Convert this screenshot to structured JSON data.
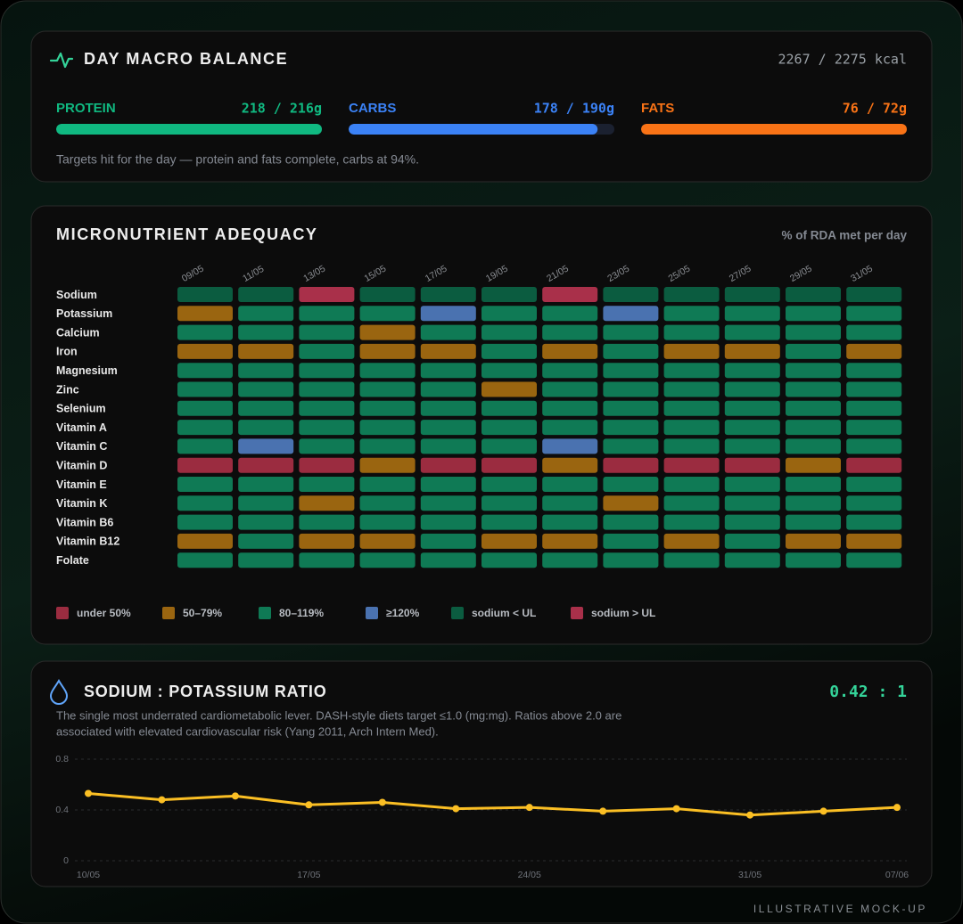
{
  "macros": {
    "title": "DAY MACRO BALANCE",
    "kcal": "2267 / 2275 kcal",
    "items": [
      {
        "name": "PROTEIN",
        "label": "218 / 216g",
        "value": 218,
        "target": 216,
        "color": "#10b981"
      },
      {
        "name": "CARBS",
        "label": "178 / 190g",
        "value": 178,
        "target": 190,
        "color": "#3b82f6"
      },
      {
        "name": "FATS",
        "label": "76 / 72g",
        "value": 76,
        "target": 72,
        "color": "#f97316"
      }
    ],
    "note": "Targets hit for the day — protein and fats complete, carbs at 94%."
  },
  "micronutrients": {
    "title": "MICRONUTRIENT ADEQUACY",
    "subtitle": "% of RDA met per day",
    "dates": [
      "09/05",
      "11/05",
      "13/05",
      "15/05",
      "17/05",
      "19/05",
      "21/05",
      "23/05",
      "25/05",
      "27/05",
      "29/05",
      "31/05"
    ],
    "legend": [
      {
        "label": "under 50%",
        "color": "#9b2c40"
      },
      {
        "label": "50–79%",
        "color": "#9a6510"
      },
      {
        "label": "80–119%",
        "color": "#0f7a55"
      },
      {
        "label": "≥120%",
        "color": "#4a72b0"
      },
      {
        "label": "sodium < UL",
        "color": "#0b5c40"
      },
      {
        "label": "sodium > UL",
        "color": "#a9304a"
      }
    ],
    "rows": [
      {
        "name": "Sodium",
        "cells": [
          4,
          4,
          5,
          4,
          4,
          4,
          5,
          4,
          4,
          4,
          4,
          4
        ]
      },
      {
        "name": "Potassium",
        "cells": [
          1,
          2,
          2,
          2,
          3,
          2,
          2,
          3,
          2,
          2,
          2,
          2
        ]
      },
      {
        "name": "Calcium",
        "cells": [
          2,
          2,
          2,
          1,
          2,
          2,
          2,
          2,
          2,
          2,
          2,
          2
        ]
      },
      {
        "name": "Iron",
        "cells": [
          1,
          1,
          2,
          1,
          1,
          2,
          1,
          2,
          1,
          1,
          2,
          1
        ]
      },
      {
        "name": "Magnesium",
        "cells": [
          2,
          2,
          2,
          2,
          2,
          2,
          2,
          2,
          2,
          2,
          2,
          2
        ]
      },
      {
        "name": "Zinc",
        "cells": [
          2,
          2,
          2,
          2,
          2,
          1,
          2,
          2,
          2,
          2,
          2,
          2
        ]
      },
      {
        "name": "Selenium",
        "cells": [
          2,
          2,
          2,
          2,
          2,
          2,
          2,
          2,
          2,
          2,
          2,
          2
        ]
      },
      {
        "name": "Vitamin A",
        "cells": [
          2,
          2,
          2,
          2,
          2,
          2,
          2,
          2,
          2,
          2,
          2,
          2
        ]
      },
      {
        "name": "Vitamin C",
        "cells": [
          2,
          3,
          2,
          2,
          2,
          2,
          3,
          2,
          2,
          2,
          2,
          2
        ]
      },
      {
        "name": "Vitamin D",
        "cells": [
          0,
          0,
          0,
          1,
          0,
          0,
          1,
          0,
          0,
          0,
          1,
          0
        ]
      },
      {
        "name": "Vitamin E",
        "cells": [
          2,
          2,
          2,
          2,
          2,
          2,
          2,
          2,
          2,
          2,
          2,
          2
        ]
      },
      {
        "name": "Vitamin K",
        "cells": [
          2,
          2,
          1,
          2,
          2,
          2,
          2,
          1,
          2,
          2,
          2,
          2
        ]
      },
      {
        "name": "Vitamin B6",
        "cells": [
          2,
          2,
          2,
          2,
          2,
          2,
          2,
          2,
          2,
          2,
          2,
          2
        ]
      },
      {
        "name": "Vitamin B12",
        "cells": [
          1,
          2,
          1,
          1,
          2,
          1,
          1,
          2,
          1,
          2,
          1,
          1
        ]
      },
      {
        "name": "Folate",
        "cells": [
          2,
          2,
          2,
          2,
          2,
          2,
          2,
          2,
          2,
          2,
          2,
          2
        ]
      }
    ]
  },
  "chart_data": {
    "type": "line",
    "title": "SODIUM : POTASSIUM RATIO",
    "annotation": "0.42 : 1",
    "description": [
      "The single most underrated cardiometabolic lever. DASH-style diets target ≤1.0 (mg:mg). Ratios above 2.0 are",
      "associated with elevated cardiovascular risk (Yang 2011, Arch Intern Med)."
    ],
    "categories": [
      "10/05",
      null,
      null,
      "17/05",
      null,
      null,
      "24/05",
      null,
      null,
      "31/05",
      null,
      "07/06"
    ],
    "values": [
      0.53,
      0.48,
      0.51,
      0.44,
      0.46,
      0.41,
      0.42,
      0.39,
      0.41,
      0.36,
      0.39,
      0.42
    ],
    "color": "#fbbf24",
    "ylim": [
      0,
      0.8
    ],
    "yticks": [
      0,
      0.4,
      0.8
    ],
    "grid": true
  },
  "footer": "ILLUSTRATIVE MOCK-UP"
}
